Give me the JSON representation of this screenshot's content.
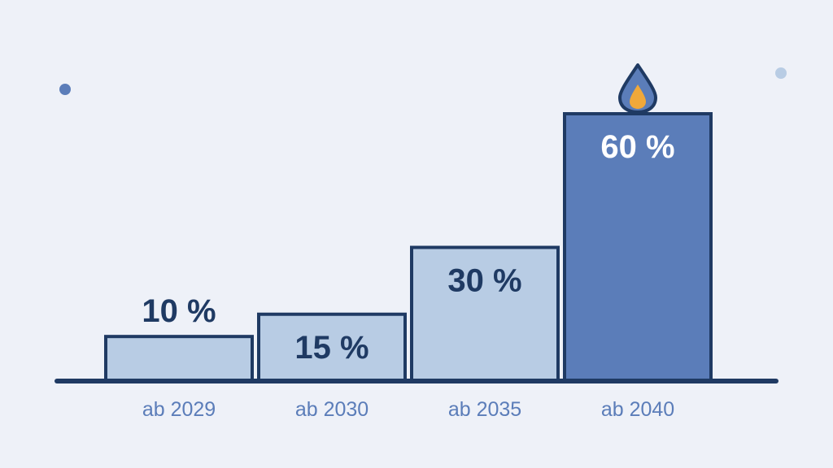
{
  "chart_data": {
    "type": "bar",
    "categories": [
      "ab 2029",
      "ab 2030",
      "ab 2035",
      "ab 2040"
    ],
    "values": [
      10,
      15,
      30,
      60
    ],
    "value_labels": [
      "10 %",
      "15 %",
      "30 %",
      "60 %"
    ],
    "title": "",
    "xlabel": "",
    "ylabel": "",
    "ylim": [
      0,
      60
    ],
    "grid": false,
    "legend": "none",
    "highlight_index": 3,
    "highlight_icon": "flame-drop-icon"
  },
  "colors": {
    "background": "#eef1f8",
    "bar_fill": "#b8cce4",
    "bar_highlight_fill": "#5b7db9",
    "bar_stroke": "#1f3a63",
    "value_text_dark": "#1f3a63",
    "value_text_light": "#ffffff",
    "category_text": "#5b7db9",
    "baseline": "#1f3a63",
    "flame_orange": "#f0a83a",
    "dot_dark": "#5b7db9",
    "dot_light": "#b8cce4"
  }
}
